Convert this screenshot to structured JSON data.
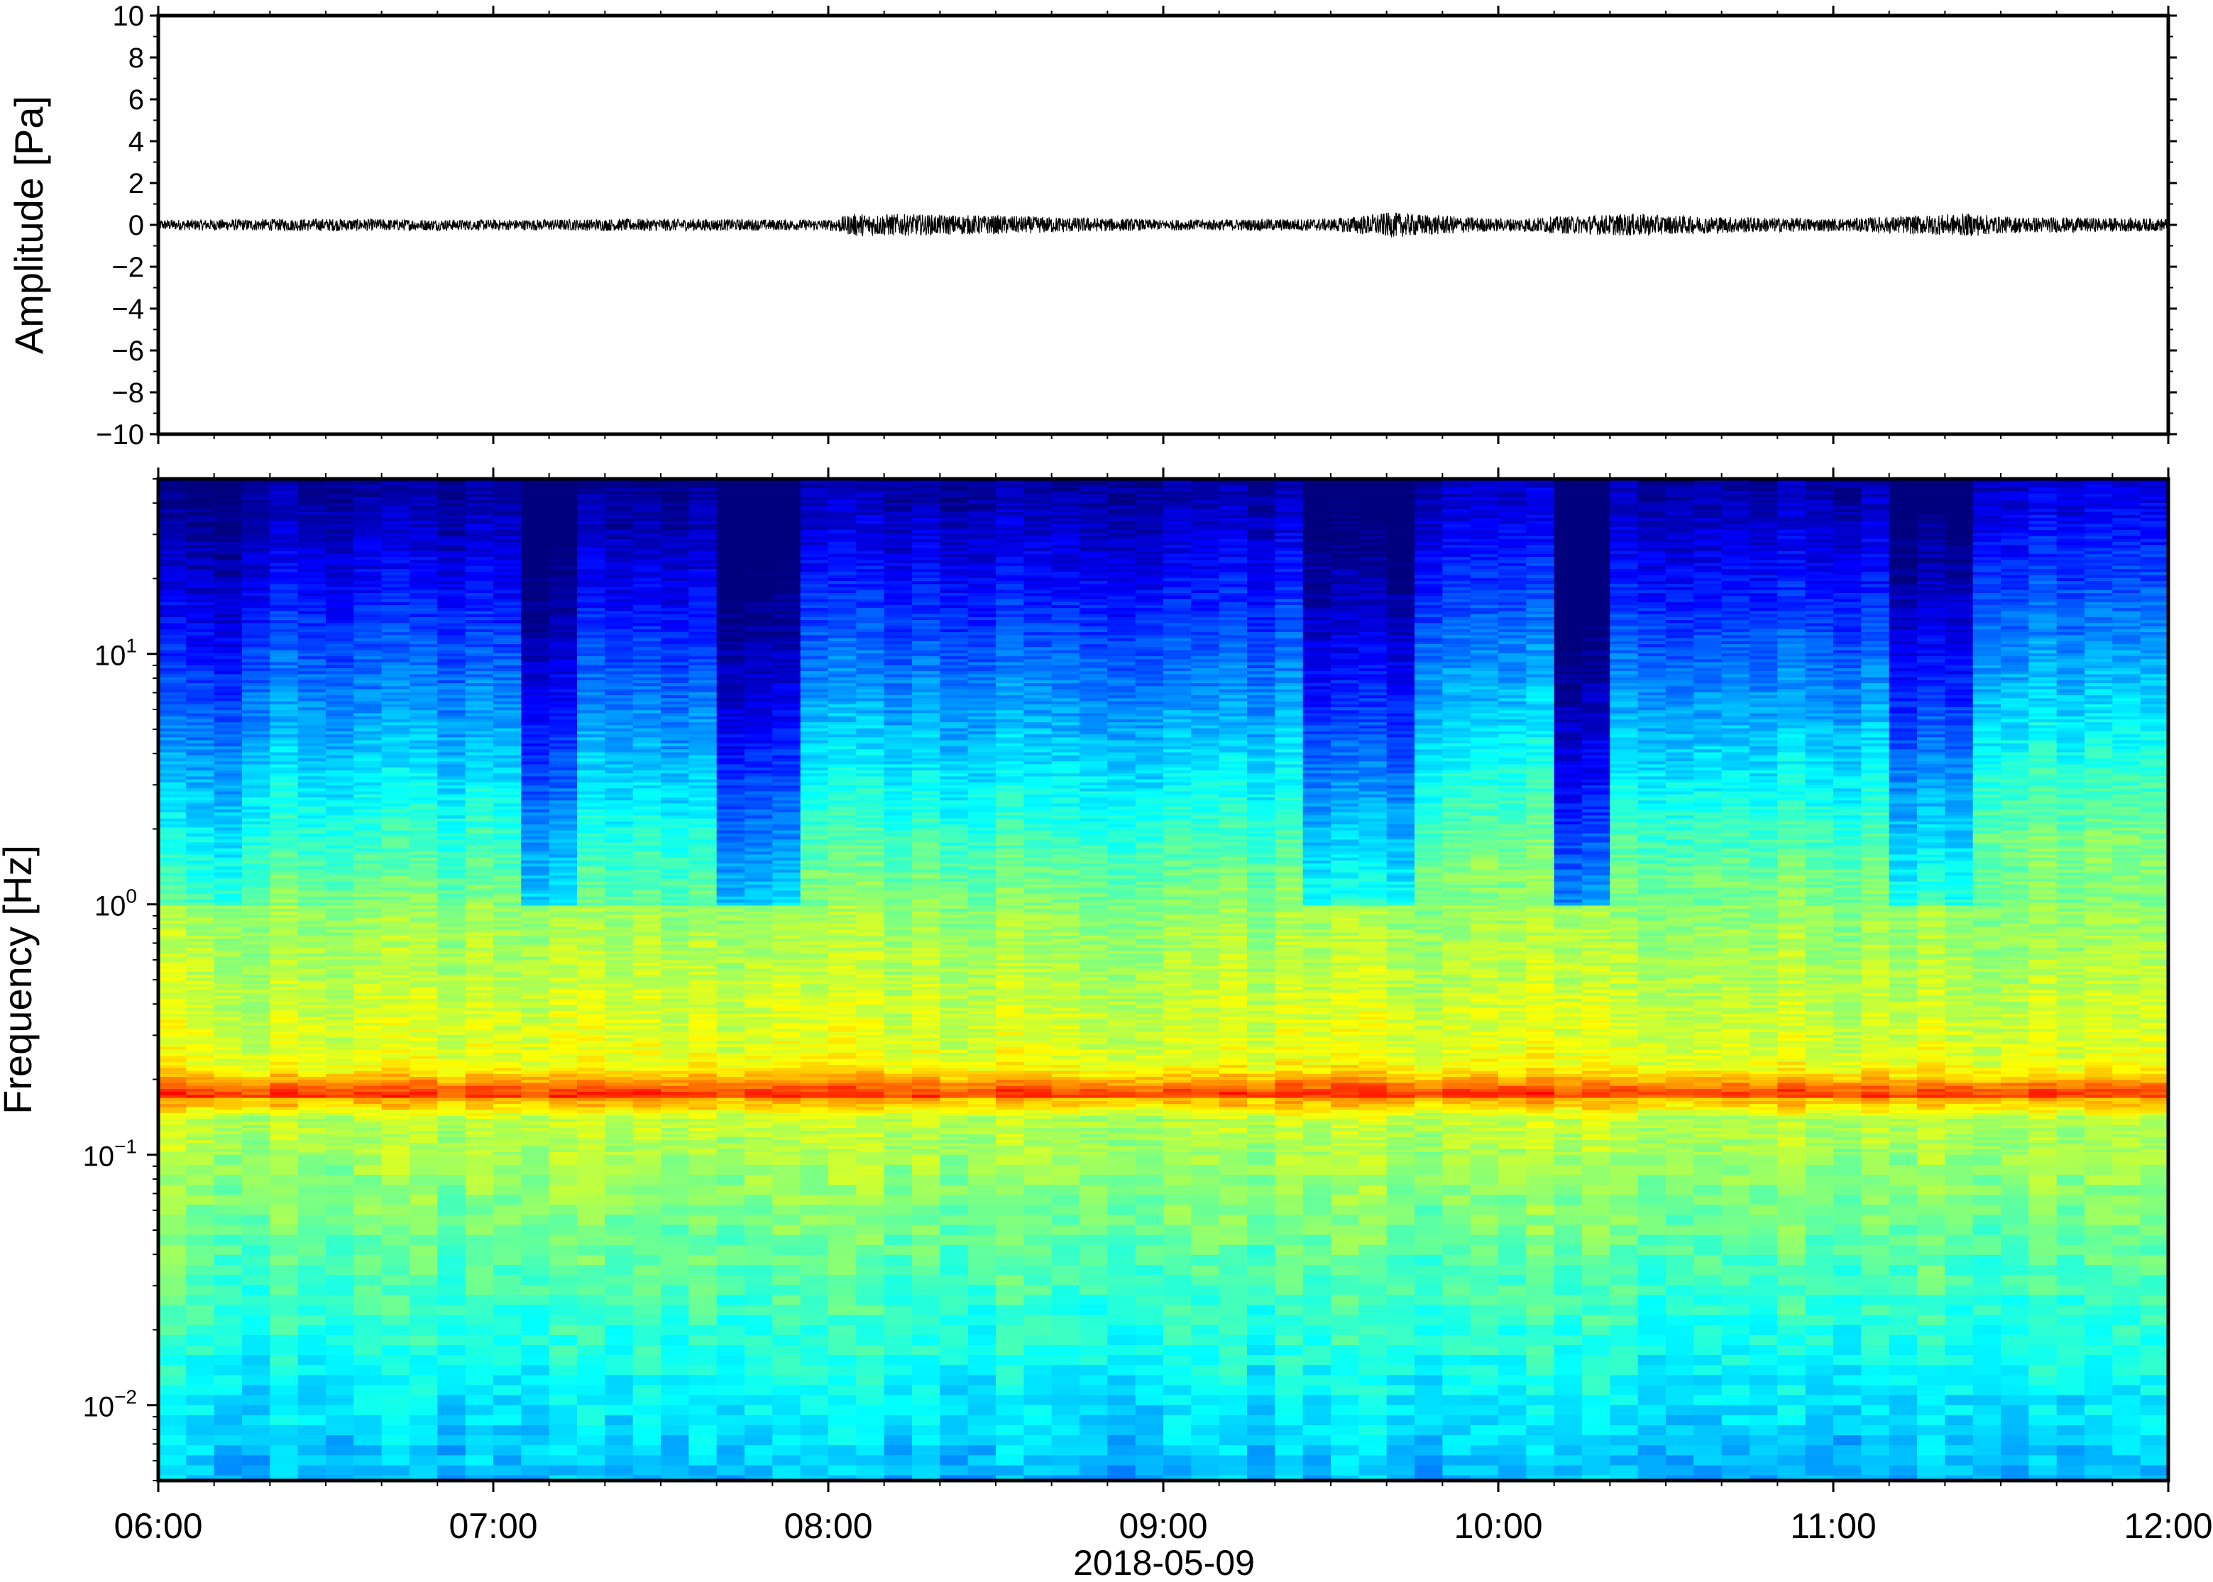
{
  "chart_data": [
    {
      "type": "line",
      "ylabel": "Amplitude [Pa]",
      "ylim": [
        -10,
        10
      ],
      "yticks": [
        "10",
        "8",
        "6",
        "4",
        "2",
        "0",
        "−2",
        "−4",
        "−6",
        "−8",
        "−10"
      ],
      "ytick_values": [
        10,
        8,
        6,
        4,
        2,
        0,
        -2,
        -4,
        -6,
        -8,
        -10
      ],
      "xlim": [
        "06:00",
        "12:00"
      ],
      "grid": false,
      "series": [
        {
          "color": "#000000",
          "x_hours": [
            6.0,
            6.5,
            7.0,
            7.5,
            8.0,
            8.08,
            8.5,
            9.0,
            9.5,
            9.68,
            10.0,
            10.42,
            10.5,
            11.0,
            11.42,
            11.5,
            12.0
          ],
          "envelope_pa": [
            0.25,
            0.3,
            0.25,
            0.3,
            0.25,
            0.55,
            0.45,
            0.25,
            0.3,
            0.6,
            0.3,
            0.55,
            0.45,
            0.3,
            0.55,
            0.4,
            0.3
          ]
        }
      ]
    },
    {
      "type": "heatmap",
      "ylabel": "Frequency [Hz]",
      "xlabel": "2018-05-09",
      "y_scale": "log",
      "ylim_hz": [
        0.005,
        50
      ],
      "ytick_values": [
        0.01,
        0.1,
        1,
        10
      ],
      "yticks": [
        {
          "base": "10",
          "exp": "−2"
        },
        {
          "base": "10",
          "exp": "−1"
        },
        {
          "base": "10",
          "exp": "0"
        },
        {
          "base": "10",
          "exp": "1"
        }
      ],
      "x_hours": [
        6,
        7,
        8,
        9,
        10,
        11,
        12
      ],
      "xticks": [
        "06:00",
        "07:00",
        "08:00",
        "09:00",
        "10:00",
        "11:00",
        "12:00"
      ],
      "colormap": "jet",
      "colors": [
        "#00007f",
        "#0000ff",
        "#007fff",
        "#00ffff",
        "#7fff7f",
        "#ffff00",
        "#ff7f00",
        "#ff0000",
        "#7f0000"
      ],
      "microbarom_peak_hz": 0.17,
      "power_level_by_segment": [
        {
          "start": "06:00",
          "end": "06:15",
          "upper_cutoff_hz": 12
        },
        {
          "start": "06:15",
          "end": "07:05",
          "upper_cutoff_hz": 20
        },
        {
          "start": "07:05",
          "end": "07:15",
          "upper_cutoff_hz": 6
        },
        {
          "start": "07:15",
          "end": "07:40",
          "upper_cutoff_hz": 16
        },
        {
          "start": "07:40",
          "end": "07:55",
          "upper_cutoff_hz": 5
        },
        {
          "start": "07:55",
          "end": "09:25",
          "upper_cutoff_hz": 22
        },
        {
          "start": "09:25",
          "end": "09:45",
          "upper_cutoff_hz": 8
        },
        {
          "start": "09:45",
          "end": "10:10",
          "upper_cutoff_hz": 28
        },
        {
          "start": "10:10",
          "end": "10:20",
          "upper_cutoff_hz": 3
        },
        {
          "start": "10:20",
          "end": "11:10",
          "upper_cutoff_hz": 24
        },
        {
          "start": "11:10",
          "end": "11:25",
          "upper_cutoff_hz": 10
        },
        {
          "start": "11:25",
          "end": "12:00",
          "upper_cutoff_hz": 35
        }
      ]
    }
  ]
}
